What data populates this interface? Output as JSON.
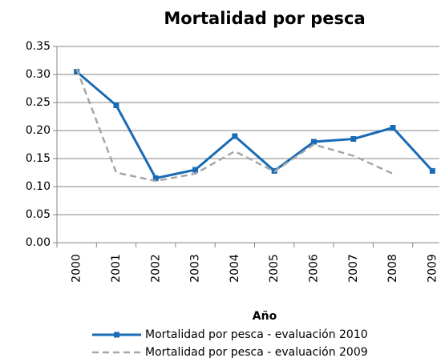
{
  "chart_data": {
    "type": "line",
    "title": "Mortalidad por pesca",
    "x_label": "Año",
    "categories": [
      "2000",
      "2001",
      "2002",
      "2003",
      "2004",
      "2005",
      "2006",
      "2007",
      "2008",
      "2009"
    ],
    "series": [
      {
        "name": "Mortalidad por pesca - evaluación 2010",
        "color": "#1a6bb5",
        "line_style": "solid",
        "marker": "square",
        "values": [
          0.305,
          0.245,
          0.115,
          0.13,
          0.19,
          0.128,
          0.18,
          0.185,
          0.205,
          0.128
        ]
      },
      {
        "name": "Mortalidad por pesca - evaluación 2009",
        "color": "#a6a6a6",
        "line_style": "dashed",
        "marker": "none",
        "values": [
          0.31,
          0.125,
          0.11,
          0.123,
          0.163,
          0.127,
          0.175,
          0.155,
          0.123,
          null
        ]
      }
    ],
    "ylim": [
      0,
      0.35
    ],
    "yticks": [
      {
        "value": 0,
        "label": "0.00"
      },
      {
        "value": 0.05,
        "label": "0.05"
      },
      {
        "value": 0.1,
        "label": "0.10"
      },
      {
        "value": 0.15,
        "label": "0.15"
      },
      {
        "value": 0.2,
        "label": "0.20"
      },
      {
        "value": 0.25,
        "label": "0.25"
      },
      {
        "value": 0.3,
        "label": "0.30"
      },
      {
        "value": 0.35,
        "label": "0.35"
      }
    ],
    "grid": true,
    "legend": "bottom"
  }
}
